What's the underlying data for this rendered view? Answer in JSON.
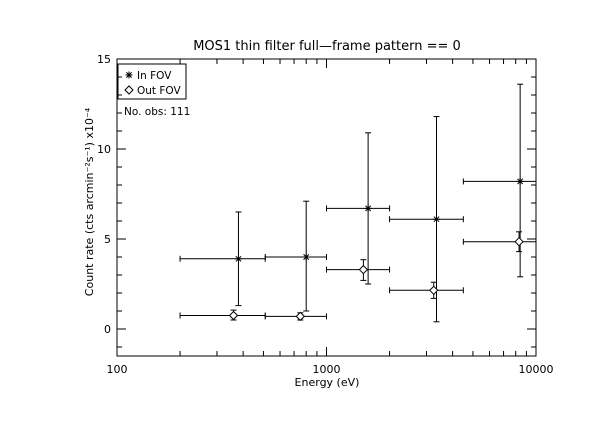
{
  "chart_data": {
    "type": "scatter",
    "title": "MOS1 thin filter full—frame pattern == 0",
    "xlabel": "Energy (eV)",
    "ylabel": "Count rate (cts arcmin⁻²s⁻¹) x10⁻⁴",
    "x_scale": "log",
    "xlim": [
      100,
      10000
    ],
    "ylim": [
      -1.5,
      15
    ],
    "grid": false,
    "legend_position": "top-left",
    "x_ticks": [
      {
        "value": 100,
        "label": "100"
      },
      {
        "value": 1000,
        "label": "1000"
      },
      {
        "value": 10000,
        "label": "10000"
      }
    ],
    "y_ticks": [
      {
        "value": 0,
        "label": "0"
      },
      {
        "value": 5,
        "label": "5"
      },
      {
        "value": 10,
        "label": "10"
      },
      {
        "value": 15,
        "label": "15"
      }
    ],
    "annotation": "No. obs: 111",
    "series": [
      {
        "name": "In FOV",
        "marker": "asterisk",
        "points": [
          {
            "x": 380,
            "x_lo": 200,
            "x_hi": 510,
            "y": 3.9,
            "y_lo": 1.3,
            "y_hi": 6.5
          },
          {
            "x": 800,
            "x_lo": 510,
            "x_hi": 1000,
            "y": 4.0,
            "y_lo": 1.0,
            "y_hi": 7.1
          },
          {
            "x": 1580,
            "x_lo": 1000,
            "x_hi": 2000,
            "y": 6.7,
            "y_lo": 2.5,
            "y_hi": 10.9
          },
          {
            "x": 3350,
            "x_lo": 2000,
            "x_hi": 4500,
            "y": 6.1,
            "y_lo": 0.4,
            "y_hi": 11.8
          },
          {
            "x": 8400,
            "x_lo": 4500,
            "x_hi": 10000,
            "y": 8.2,
            "y_lo": 2.9,
            "y_hi": 13.6
          }
        ]
      },
      {
        "name": "Out FOV",
        "marker": "diamond",
        "points": [
          {
            "x": 360,
            "x_lo": 200,
            "x_hi": 510,
            "y": 0.75,
            "y_lo": 0.5,
            "y_hi": 1.05
          },
          {
            "x": 750,
            "x_lo": 510,
            "x_hi": 1000,
            "y": 0.7,
            "y_lo": 0.5,
            "y_hi": 0.9
          },
          {
            "x": 1500,
            "x_lo": 1000,
            "x_hi": 2000,
            "y": 3.3,
            "y_lo": 2.7,
            "y_hi": 3.85
          },
          {
            "x": 3250,
            "x_lo": 2000,
            "x_hi": 4500,
            "y": 2.15,
            "y_lo": 1.7,
            "y_hi": 2.6
          },
          {
            "x": 8300,
            "x_lo": 4500,
            "x_hi": 10000,
            "y": 4.85,
            "y_lo": 4.3,
            "y_hi": 5.4
          }
        ]
      }
    ]
  }
}
